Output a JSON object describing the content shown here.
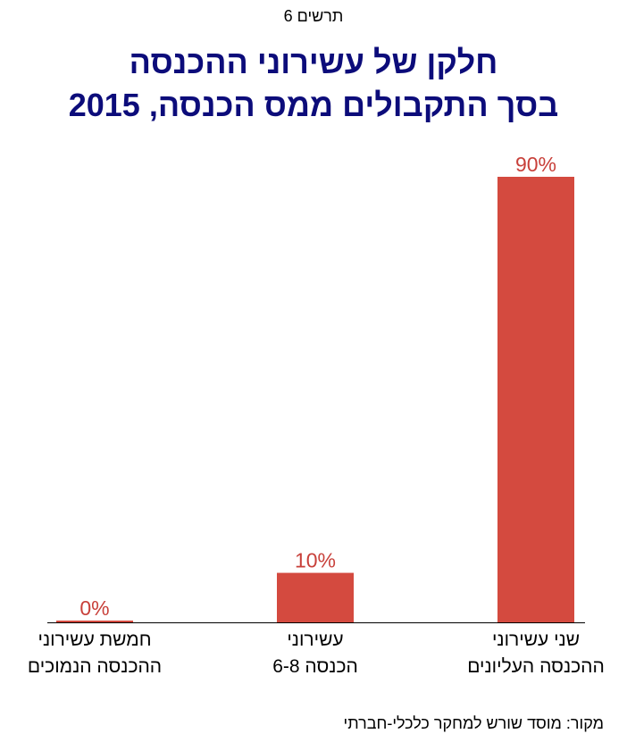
{
  "figure_label": "תרשים 6",
  "title_line1": "חלקן של עשירוני ההכנסה",
  "title_line2": "בסך התקבולים ממס הכנסה, 2015",
  "source": "מקור:  מוסד שורש למחקר כלכלי-חברתי",
  "colors": {
    "bar": "#d44a3f",
    "value_label": "#c8403a",
    "title": "#0c0c7a"
  },
  "chart_data": {
    "type": "bar",
    "categories": [
      [
        "חמשת עשירוני",
        "ההכנסה הנמוכים"
      ],
      [
        "עשירוני",
        "הכנסה 6-8"
      ],
      [
        "שני עשירוני",
        "ההכנסה העליונים"
      ]
    ],
    "values": [
      0,
      10,
      90
    ],
    "value_labels": [
      "0%",
      "10%",
      "90%"
    ],
    "ylim": [
      0,
      90
    ],
    "title": "חלקן של עשירוני ההכנסה בסך התקבולים ממס הכנסה, 2015",
    "xlabel": "",
    "ylabel": "",
    "grid": false,
    "legend": false
  }
}
